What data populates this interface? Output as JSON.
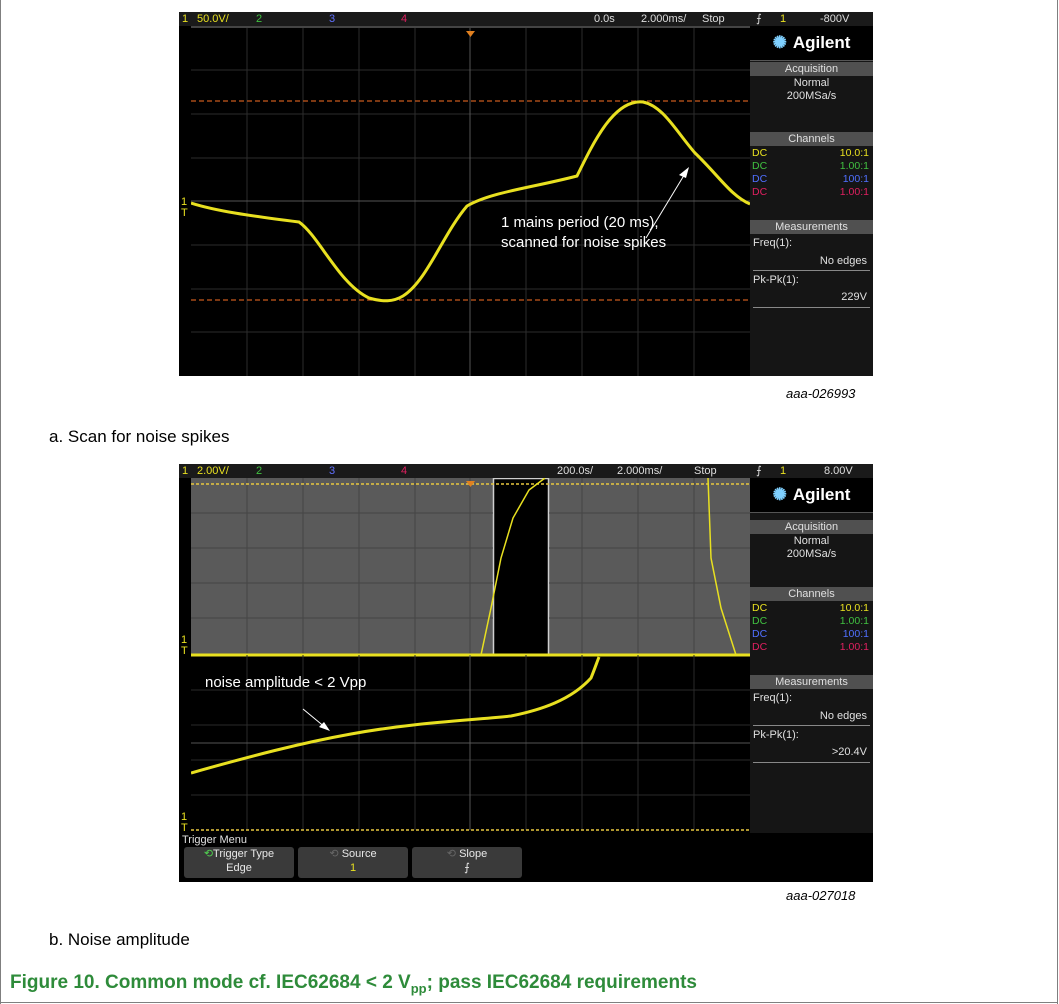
{
  "scope_a": {
    "status": {
      "ch1": "1",
      "ch1_scale": "50.0V/",
      "ch2": "2",
      "ch3": "3",
      "ch4": "4",
      "time_pos": "0.0s",
      "time_scale": "2.000ms/",
      "run": "Stop",
      "trig_ch": "1",
      "trig_level": "-800V"
    },
    "logo": "Agilent",
    "acq_header": "Acquisition",
    "acq_mode": "Normal",
    "acq_rate": "200MSa/s",
    "chan_header": "Channels",
    "channels": [
      {
        "coupling": "DC",
        "probe": "10.0:1"
      },
      {
        "coupling": "DC",
        "probe": "1.00:1"
      },
      {
        "coupling": "DC",
        "probe": "100:1"
      },
      {
        "coupling": "DC",
        "probe": "1.00:1"
      }
    ],
    "meas_header": "Measurements",
    "freq_label": "Freq(1):",
    "freq_value": "No edges",
    "pkpk_label": "Pk-Pk(1):",
    "pkpk_value": "229V",
    "annotation_line1": "1 mains period (20 ms),",
    "annotation_line2": "scanned for noise spikes"
  },
  "ref_a": "aaa-026993",
  "caption_a": "a. Scan for noise spikes",
  "scope_b": {
    "status": {
      "ch1": "1",
      "ch1_scale": "2.00V/",
      "ch2": "2",
      "ch3": "3",
      "ch4": "4",
      "time_pos": "200.0s/",
      "time_scale": "2.000ms/",
      "run": "Stop",
      "trig_ch": "1",
      "trig_level": "8.00V"
    },
    "logo": "Agilent",
    "acq_header": "Acquisition",
    "acq_mode": "Normal",
    "acq_rate": "200MSa/s",
    "chan_header": "Channels",
    "channels": [
      {
        "coupling": "DC",
        "probe": "10.0:1"
      },
      {
        "coupling": "DC",
        "probe": "1.00:1"
      },
      {
        "coupling": "DC",
        "probe": "100:1"
      },
      {
        "coupling": "DC",
        "probe": "1.00:1"
      }
    ],
    "meas_header": "Measurements",
    "freq_label": "Freq(1):",
    "freq_value": "No edges",
    "pkpk_label": "Pk-Pk(1):",
    "pkpk_value": ">20.4V",
    "annotation": "noise amplitude < 2 Vpp",
    "menu_title": "Trigger Menu",
    "softkeys": [
      {
        "label": "Trigger Type",
        "value": "Edge"
      },
      {
        "label": "Source",
        "value": "1"
      },
      {
        "label": "Slope",
        "value": "⨍"
      }
    ]
  },
  "ref_b": "aaa-027018",
  "caption_b": "b. Noise amplitude",
  "figure_title": {
    "prefix": "Figure 10.  Common mode cf. IEC62684 < 2 V",
    "sub": "pp",
    "suffix": "; pass IEC62684 requirements"
  },
  "colors": {
    "ch1": "#e8e020",
    "ch2": "#40c040",
    "ch3": "#4060ff",
    "ch4": "#e02060",
    "title_green": "#2e8b3a"
  }
}
